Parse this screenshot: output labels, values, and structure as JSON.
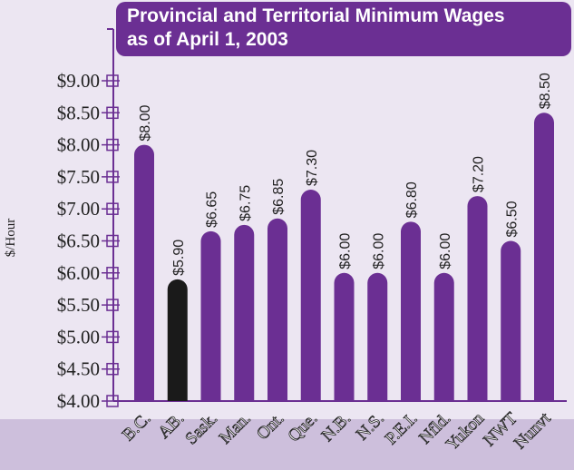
{
  "chart_data": {
    "type": "bar",
    "title": [
      "Provincial and Territorial Minimum Wages",
      "as of April 1, 2003"
    ],
    "y_label": "$/Hour",
    "categories": [
      "B.C.",
      "AB.",
      "Sask.",
      "Man.",
      "Ont.",
      "Que.",
      "N.B.",
      "N.S.",
      "P.E.I.",
      "Nfld.",
      "Yukon",
      "NWT",
      "Nunvt"
    ],
    "values": [
      8.0,
      5.9,
      6.65,
      6.75,
      6.85,
      7.3,
      6.0,
      6.0,
      6.8,
      6.0,
      7.2,
      6.5,
      8.5
    ],
    "value_labels": [
      "$8.00",
      "$5.90",
      "$6.65",
      "$6.75",
      "$6.85",
      "$7.30",
      "$6.00",
      "$6.00",
      "$6.80",
      "$6.00",
      "$7.20",
      "$6.50",
      "$8.50"
    ],
    "colors": [
      "#6b2f93",
      "#1a1a1a",
      "#6b2f93",
      "#6b2f93",
      "#6b2f93",
      "#6b2f93",
      "#6b2f93",
      "#6b2f93",
      "#6b2f93",
      "#6b2f93",
      "#6b2f93",
      "#6b2f93",
      "#6b2f93"
    ],
    "ylim": [
      4,
      9
    ],
    "yticks": [
      {
        "value": 4,
        "label": "$4.00"
      },
      {
        "value": 4.5,
        "label": "$4.50"
      },
      {
        "value": 5,
        "label": "$5.00"
      },
      {
        "value": 5.5,
        "label": "$5.50"
      },
      {
        "value": 6,
        "label": "$6.00"
      },
      {
        "value": 6.5,
        "label": "$6.50"
      },
      {
        "value": 7,
        "label": "$7.00"
      },
      {
        "value": 7.5,
        "label": "$7.50"
      },
      {
        "value": 8,
        "label": "$8.00"
      },
      {
        "value": 8.5,
        "label": "$8.50"
      },
      {
        "value": 9,
        "label": "$9.00"
      }
    ]
  }
}
